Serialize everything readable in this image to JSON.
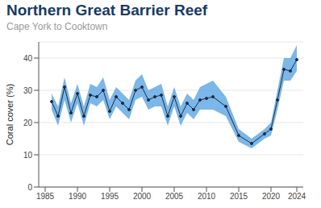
{
  "chart_data": {
    "type": "line",
    "title": "Northern Great Barrier Reef",
    "subtitle": "Cape York to Cooktown",
    "y_label": "Coral cover (%)",
    "x": [
      1986,
      1987,
      1988,
      1989,
      1990,
      1991,
      1992,
      1993,
      1994,
      1995,
      1996,
      1997,
      1998,
      1999,
      2000,
      2001,
      2002,
      2003,
      2004,
      2005,
      2006,
      2007,
      2008,
      2009,
      2010,
      2011,
      2013,
      2015,
      2017,
      2019,
      2020,
      2021,
      2022,
      2023,
      2024
    ],
    "values": [
      26.5,
      22,
      31,
      23,
      29,
      22,
      28.5,
      28,
      30,
      23.5,
      28,
      26,
      24,
      30,
      31,
      27,
      28,
      28.5,
      22,
      28,
      22,
      26,
      24,
      27,
      27.5,
      28,
      25,
      16,
      13.5,
      16.5,
      18,
      27,
      36.5,
      36,
      39.5
    ],
    "lower": [
      24,
      19,
      27,
      20,
      26,
      19,
      26,
      25,
      27,
      21,
      25,
      23,
      21,
      27,
      28,
      24,
      25,
      25,
      19,
      25,
      19,
      23,
      21,
      24,
      24,
      24,
      22,
      14,
      12,
      15,
      16,
      24,
      33,
      33,
      36
    ],
    "upper": [
      29,
      25,
      34,
      26,
      32,
      25,
      32,
      31,
      34,
      27,
      31,
      29,
      27,
      33,
      35,
      30,
      31,
      32,
      25,
      31,
      25,
      29,
      27,
      31,
      32,
      33,
      28,
      18,
      15,
      18,
      20,
      30,
      40,
      40,
      44
    ],
    "color": "#1c2b45",
    "marker": "circle",
    "xlim": [
      1984,
      2025
    ],
    "xticks": [
      1985,
      1990,
      1995,
      2000,
      2005,
      2010,
      2015,
      2020,
      2024
    ],
    "ylim": [
      0,
      45
    ],
    "yticks": [
      0,
      10,
      20,
      30,
      40
    ],
    "grid": true
  }
}
